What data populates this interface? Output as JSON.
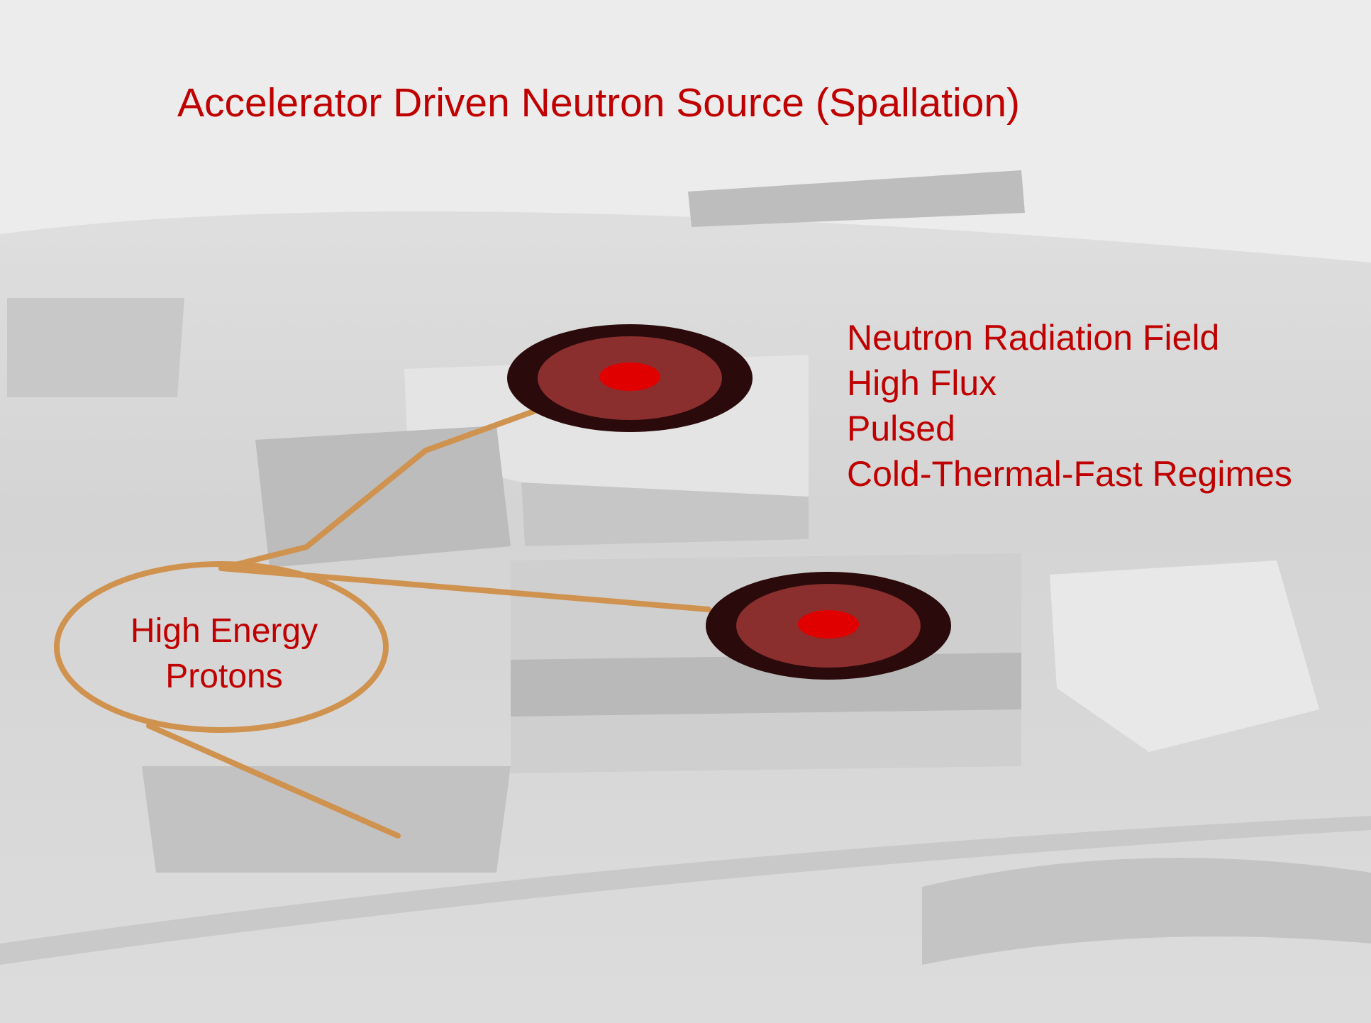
{
  "title": "Accelerator Driven Neutron Source (Spallation)",
  "field_labels": [
    "Neutron Radiation Field",
    "High Flux",
    "Pulsed",
    "Cold-Thermal-Fast Regimes"
  ],
  "source_label": [
    "High Energy",
    "Protons"
  ]
}
